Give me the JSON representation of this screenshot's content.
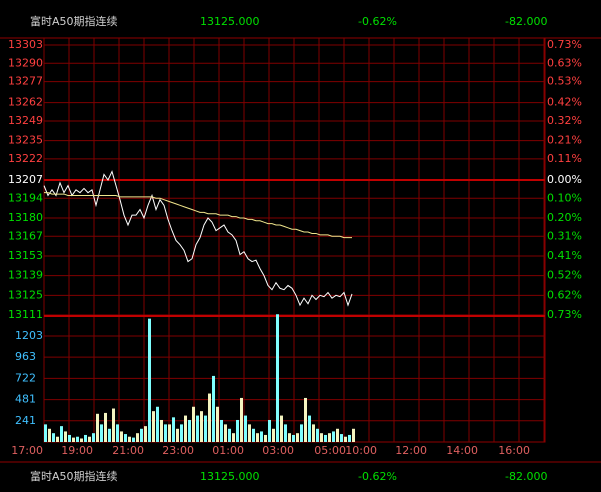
{
  "header": {
    "name": "富时A50期指连续",
    "price": "13125.000",
    "change_pct": "-0.62%",
    "change": "-82.000"
  },
  "chart_data": {
    "type": "line",
    "ylim": [
      13111,
      13303
    ],
    "yticks": [
      13303,
      13290,
      13277,
      13262,
      13249,
      13235,
      13222,
      13207,
      13194,
      13180,
      13167,
      13153,
      13139,
      13125,
      13111
    ],
    "prev_close": 13207,
    "right_labels": [
      "0.73%",
      "0.63%",
      "0.53%",
      "0.42%",
      "0.32%",
      "0.21%",
      "0.11%",
      "0.00%",
      "0.10%",
      "0.20%",
      "0.31%",
      "0.41%",
      "0.52%",
      "0.62%",
      "0.73%"
    ],
    "series": [
      {
        "color": "#ffffff",
        "values": [
          13203,
          13196,
          13200,
          13196,
          13205,
          13198,
          13203,
          13196,
          13200,
          13198,
          13201,
          13198,
          13200,
          13189,
          13200,
          13211,
          13207,
          13213,
          13203,
          13193,
          13182,
          13175,
          13182,
          13182,
          13186,
          13180,
          13189,
          13196,
          13186,
          13193,
          13189,
          13179,
          13171,
          13164,
          13161,
          13157,
          13149,
          13151,
          13161,
          13166,
          13175,
          13180,
          13177,
          13171,
          13173,
          13175,
          13170,
          13168,
          13164,
          13154,
          13156,
          13151,
          13149,
          13150,
          13144,
          13139,
          13132,
          13129,
          13134,
          13130,
          13129,
          13132,
          13130,
          13125,
          13118,
          13123,
          13119,
          13125,
          13122,
          13125,
          13124,
          13127,
          13123,
          13125,
          13124,
          13127,
          13118,
          13126
        ]
      },
      {
        "color": "#f0e68c",
        "values": [
          13198,
          13198,
          13197,
          13197,
          13197,
          13197,
          13196,
          13196,
          13196,
          13196,
          13196,
          13196,
          13196,
          13196,
          13196,
          13196,
          13196,
          13196,
          13196,
          13195,
          13195,
          13195,
          13195,
          13195,
          13195,
          13195,
          13195,
          13195,
          13194,
          13194,
          13193,
          13192,
          13191,
          13190,
          13189,
          13188,
          13187,
          13186,
          13185,
          13184,
          13184,
          13183,
          13183,
          13183,
          13182,
          13182,
          13182,
          13181,
          13181,
          13180,
          13180,
          13179,
          13179,
          13178,
          13178,
          13177,
          13176,
          13176,
          13175,
          13175,
          13174,
          13173,
          13172,
          13172,
          13171,
          13170,
          13170,
          13169,
          13169,
          13168,
          13168,
          13168,
          13167,
          13167,
          13167,
          13166,
          13166,
          13166
        ]
      }
    ],
    "volume": {
      "ylim": [
        0,
        1430
      ],
      "yticks": [
        1203,
        963,
        722,
        481,
        241
      ],
      "colors": [
        "#7fffff",
        "#f5f5c0"
      ],
      "values": [
        200,
        150,
        100,
        60,
        180,
        120,
        80,
        50,
        60,
        40,
        80,
        60,
        100,
        320,
        200,
        330,
        150,
        380,
        200,
        120,
        90,
        60,
        50,
        100,
        150,
        180,
        1400,
        350,
        400,
        250,
        200,
        200,
        280,
        150,
        200,
        300,
        250,
        400,
        300,
        350,
        300,
        550,
        750,
        400,
        250,
        200,
        150,
        100,
        250,
        500,
        300,
        200,
        150,
        100,
        120,
        80,
        250,
        150,
        1450,
        300,
        200,
        100,
        80,
        100,
        200,
        500,
        300,
        200,
        150,
        100,
        80,
        100,
        120,
        150,
        90,
        60,
        80,
        150
      ]
    },
    "x_labels": [
      "17:00",
      "19:00",
      "21:00",
      "23:00",
      "01:00",
      "03:00",
      "05:00",
      "10:00",
      "12:00",
      "14:00",
      "16:00"
    ],
    "grid": true
  }
}
